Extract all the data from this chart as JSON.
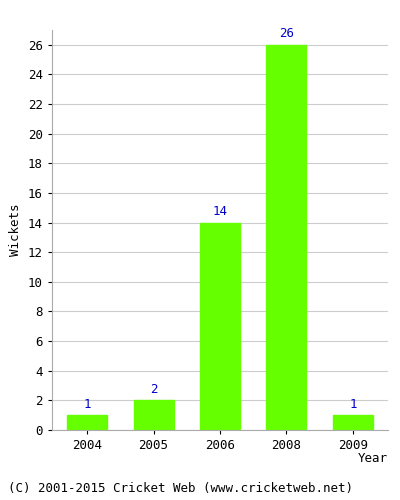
{
  "years": [
    "2004",
    "2005",
    "2006",
    "2008",
    "2009"
  ],
  "values": [
    1,
    2,
    14,
    26,
    1
  ],
  "bar_color": "#66ff00",
  "bar_edgecolor": "#66ff00",
  "label_color": "#0000cc",
  "ylabel": "Wickets",
  "xlabel": "Year",
  "ylim": [
    0,
    27
  ],
  "yticks": [
    0,
    2,
    4,
    6,
    8,
    10,
    12,
    14,
    16,
    18,
    20,
    22,
    24,
    26
  ],
  "footer": "(C) 2001-2015 Cricket Web (www.cricketweb.net)",
  "background_color": "#ffffff",
  "grid_color": "#cccccc",
  "label_fontsize": 9,
  "axis_fontsize": 9,
  "footer_fontsize": 9
}
